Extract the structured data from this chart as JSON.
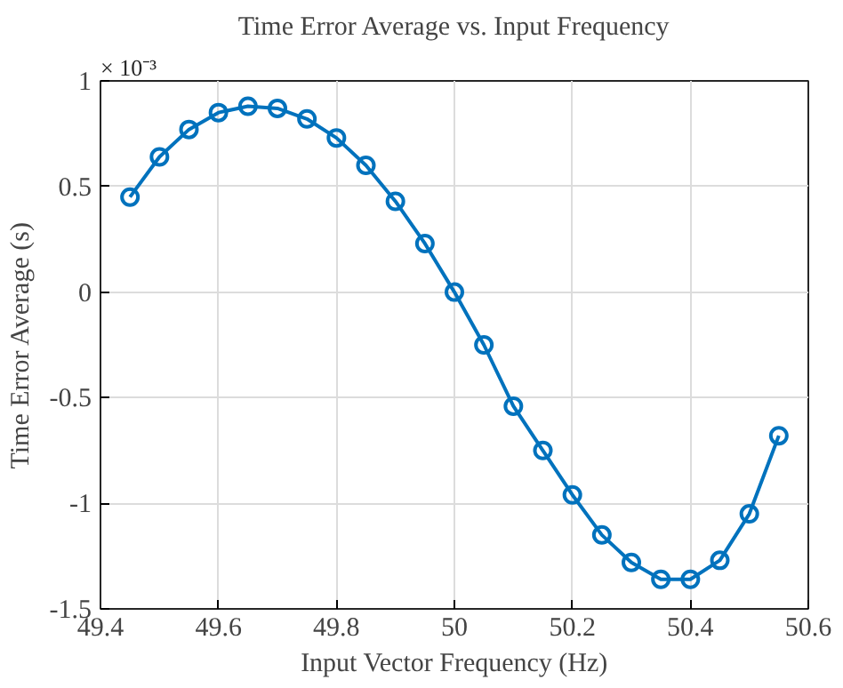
{
  "chart_data": {
    "type": "line",
    "title": "Time Error Average vs. Input Frequency",
    "xlabel": "Input Vector Frequency (Hz)",
    "ylabel": "Time Error Average (s)",
    "annotations": [
      "× 10⁻³"
    ],
    "x": [
      49.45,
      49.5,
      49.55,
      49.6,
      49.65,
      49.7,
      49.75,
      49.8,
      49.85,
      49.9,
      49.95,
      50.0,
      50.05,
      50.1,
      50.15,
      50.2,
      50.25,
      50.3,
      50.35,
      50.4,
      50.45,
      50.5,
      50.55
    ],
    "series": [
      {
        "color": "#0072bd",
        "values": [
          0.45,
          0.64,
          0.77,
          0.85,
          0.88,
          0.87,
          0.82,
          0.73,
          0.6,
          0.43,
          0.23,
          0.0,
          -0.25,
          -0.54,
          -0.75,
          -0.96,
          -1.15,
          -1.28,
          -1.36,
          -1.36,
          -1.27,
          -1.05,
          -0.68
        ]
      }
    ],
    "xlim": [
      49.4,
      50.6
    ],
    "ylim": [
      -1.5,
      1
    ],
    "xticks": [
      49.4,
      49.6,
      49.8,
      50,
      50.2,
      50.4,
      50.6
    ],
    "yticks": [
      -1.5,
      -1,
      -0.5,
      0,
      0.5,
      1
    ],
    "grid": true,
    "marker": "circle",
    "line_style": "solid"
  }
}
